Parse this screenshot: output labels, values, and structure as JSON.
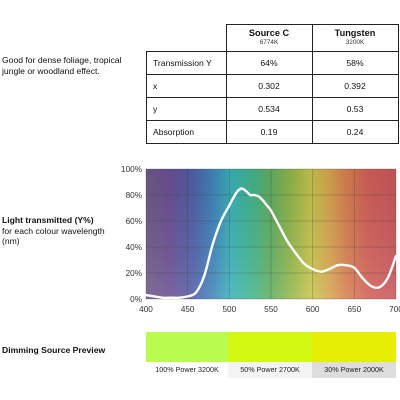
{
  "description": "Good for dense foliage, tropical jungle or woodland effect.",
  "table": {
    "sources": [
      {
        "name": "Source C",
        "sub": "6774K"
      },
      {
        "name": "Tungsten",
        "sub": "3200K"
      }
    ],
    "rows": [
      {
        "label": "Transmission Y",
        "values": [
          "64%",
          "58%"
        ]
      },
      {
        "label": "x",
        "values": [
          "0.302",
          "0.392"
        ]
      },
      {
        "label": "y",
        "values": [
          "0.534",
          "0.53"
        ]
      },
      {
        "label": "Absorption",
        "values": [
          "0.19",
          "0.24"
        ]
      }
    ]
  },
  "chart_label": {
    "title": "Light transmitted (Y%)",
    "subtitle": "for each colour wavelength (nm)"
  },
  "chart_data": {
    "type": "line",
    "title": "",
    "xlabel": "",
    "ylabel": "",
    "xlim": [
      400,
      700
    ],
    "ylim": [
      0,
      100
    ],
    "x_ticks": [
      400,
      450,
      500,
      550,
      600,
      650,
      700
    ],
    "y_ticks": [
      "0%",
      "20%",
      "40%",
      "60%",
      "80%",
      "100%"
    ],
    "grid": true,
    "background": "visible spectrum gradient",
    "line_color": "#ffffff",
    "series": [
      {
        "x": [
          400,
          410,
          420,
          430,
          440,
          450,
          460,
          470,
          480,
          490,
          500,
          505,
          510,
          515,
          520,
          525,
          530,
          535,
          540,
          545,
          550,
          560,
          570,
          580,
          590,
          600,
          610,
          620,
          630,
          640,
          650,
          660,
          670,
          680,
          690,
          700
        ],
        "values": [
          3,
          2,
          1,
          1,
          1,
          2,
          5,
          18,
          42,
          60,
          72,
          78,
          83,
          85,
          83,
          80,
          80,
          79,
          76,
          72,
          68,
          56,
          44,
          35,
          27,
          23,
          21,
          23,
          26,
          26,
          24,
          16,
          10,
          9,
          16,
          33
        ]
      }
    ]
  },
  "dimming": {
    "title": "Dimming Source Preview",
    "swatches": [
      {
        "label": "100% Power 3200K",
        "color": "#b9fc4f",
        "label_bg": "#ffffff"
      },
      {
        "label": "50% Power 2700K",
        "color": "#d3f812",
        "label_bg": "#f3f3f3"
      },
      {
        "label": "30% Power 2000K",
        "color": "#e6ee05",
        "label_bg": "#dddddd"
      }
    ]
  }
}
